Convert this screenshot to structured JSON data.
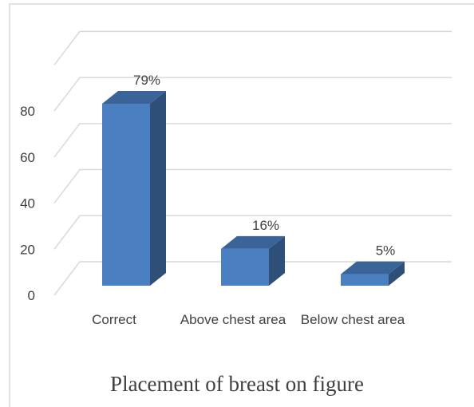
{
  "chart_data": {
    "type": "bar3d",
    "title": "Placement of breast on figure",
    "categories": [
      "Correct",
      "Above chest area",
      "Below chest area"
    ],
    "values": [
      79,
      16,
      5
    ],
    "value_labels": [
      "79%",
      "16%",
      "5%"
    ],
    "color": "#4a7fc1",
    "ylim": [
      0,
      100
    ],
    "yticks": [
      0,
      20,
      40,
      60,
      80
    ],
    "grid": true
  }
}
